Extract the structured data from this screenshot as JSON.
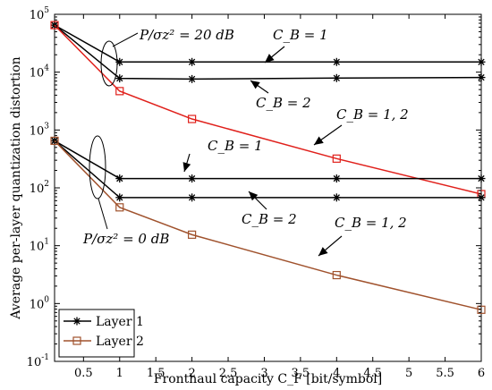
{
  "chart_data": {
    "type": "line",
    "xlabel": "Fronthaul capacity C_F [bit/symbol]",
    "ylabel": "Average per-layer quantization distortion",
    "xlim": [
      0.1,
      6
    ],
    "ylim": [
      0.1,
      100000
    ],
    "y_scale": "log",
    "x_ticks": [
      "0.5",
      "1",
      "1.5",
      "2",
      "2.5",
      "3",
      "3.5",
      "4",
      "4.5",
      "5",
      "5.5",
      "6"
    ],
    "y_tick_exponents": [
      "-1",
      "0",
      "1",
      "2",
      "3",
      "4",
      "5"
    ],
    "y_tick_base": "10",
    "grid": false,
    "legend": {
      "placement": "bottom-left",
      "entries": [
        {
          "label": "Layer 1",
          "marker": "asterisk",
          "color": "#000000"
        },
        {
          "label": "Layer 2",
          "marker": "square",
          "color": "#a0522d"
        }
      ]
    },
    "series": [
      {
        "color": "#000000",
        "marker": "asterisk",
        "x": [
          0.1,
          1,
          2,
          4,
          6
        ],
        "y": [
          65000,
          15000,
          15000,
          15000,
          15000
        ]
      },
      {
        "color": "#000000",
        "marker": "asterisk",
        "x": [
          0.1,
          1,
          2,
          4,
          6
        ],
        "y": [
          65000,
          7800,
          7600,
          7900,
          8100
        ]
      },
      {
        "color": "#e0201b",
        "marker": "square",
        "x": [
          0.1,
          1,
          2,
          4,
          6
        ],
        "y": [
          65000,
          4700,
          1550,
          320,
          78
        ]
      },
      {
        "color": "#000000",
        "marker": "asterisk",
        "x": [
          0.1,
          1,
          2,
          4,
          6
        ],
        "y": [
          650,
          145,
          145,
          145,
          145
        ]
      },
      {
        "color": "#000000",
        "marker": "asterisk",
        "x": [
          0.1,
          1,
          2,
          4,
          6
        ],
        "y": [
          650,
          68,
          68,
          68,
          68
        ]
      },
      {
        "color": "#a0522d",
        "marker": "square",
        "x": [
          0.1,
          1,
          2,
          4,
          6
        ],
        "y": [
          650,
          46,
          15.5,
          3.1,
          0.78
        ]
      }
    ],
    "annotations": [
      {
        "id": "snr20",
        "text": "P/σz² = 20 dB"
      },
      {
        "id": "cb1_top",
        "text": "C_B = 1"
      },
      {
        "id": "cb2_top",
        "text": "C_B = 2"
      },
      {
        "id": "cb12_top",
        "text": "C_B = 1, 2"
      },
      {
        "id": "cb1_bot",
        "text": "C_B = 1"
      },
      {
        "id": "cb2_bot",
        "text": "C_B = 2"
      },
      {
        "id": "cb12_bot",
        "text": "C_B = 1, 2"
      },
      {
        "id": "snr0",
        "text": "P/σz² = 0 dB"
      }
    ]
  }
}
